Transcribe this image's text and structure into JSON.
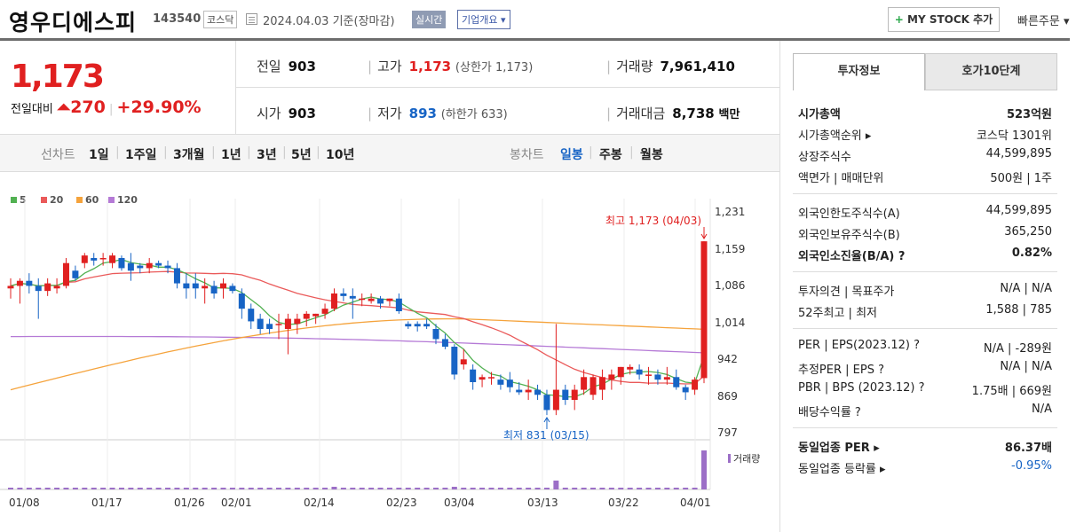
{
  "header": {
    "name": "영우디에스피",
    "code": "143540",
    "market": "코스닥",
    "date": "2024.04.03",
    "basis": "기준(장마감)",
    "realtime": "실시간",
    "company_overview": "기업개요",
    "mystock_label": "MY STOCK 추가",
    "fast_order": "빠른주문"
  },
  "price": {
    "current": "1,173",
    "diff_label": "전일대비",
    "diff_value": "270",
    "diff_pct": "+29.90%"
  },
  "stats": {
    "prev_label": "전일",
    "prev": "903",
    "high_label": "고가",
    "high": "1,173",
    "upper_limit": "(상한가 1,173)",
    "volume_label": "거래량",
    "volume": "7,961,410",
    "open_label": "시가",
    "open": "903",
    "low_label": "저가",
    "low": "893",
    "lower_limit": "(하한가 633)",
    "amount_label": "거래대금",
    "amount": "8,738",
    "amount_unit": "백만"
  },
  "periods": {
    "line_chart": "선차트",
    "items": [
      "1일",
      "1주일",
      "3개월",
      "1년",
      "3년",
      "5년",
      "10년"
    ],
    "candle_chart": "봉차트",
    "candle_items": [
      "일봉",
      "주봉",
      "월봉"
    ]
  },
  "colors": {
    "up": "#e02020",
    "down": "#1764c5",
    "ma5": "#52b152",
    "ma20": "#ea5a5a",
    "ma60": "#f5a33c",
    "ma120": "#b57ad6",
    "volume": "#9c6fc7"
  },
  "chart_data": {
    "type": "candlestick",
    "legend": [
      "5",
      "20",
      "60",
      "120"
    ],
    "y_ticks": [
      "1,231",
      "1,159",
      "1,086",
      "1,014",
      "942",
      "869",
      "797"
    ],
    "ylim": [
      797,
      1231
    ],
    "x_ticks": [
      "01/08",
      "01/17",
      "01/26",
      "02/01",
      "02/14",
      "02/23",
      "03/04",
      "03/13",
      "03/22",
      "04/01"
    ],
    "high_annotation": "최고 1,173 (04/03)",
    "low_annotation": "최저 831 (03/15)",
    "volume_label": "거래량",
    "candles": [
      [
        1080,
        1100,
        1060,
        1085
      ],
      [
        1085,
        1100,
        1050,
        1095
      ],
      [
        1095,
        1110,
        1070,
        1085
      ],
      [
        1085,
        1100,
        1020,
        1075
      ],
      [
        1075,
        1100,
        1065,
        1090
      ],
      [
        1080,
        1100,
        1070,
        1085
      ],
      [
        1085,
        1140,
        1080,
        1130
      ],
      [
        1115,
        1125,
        1095,
        1100
      ],
      [
        1130,
        1150,
        1120,
        1145
      ],
      [
        1140,
        1150,
        1125,
        1135
      ],
      [
        1140,
        1150,
        1125,
        1140
      ],
      [
        1130,
        1150,
        1120,
        1145
      ],
      [
        1140,
        1145,
        1115,
        1120
      ],
      [
        1130,
        1150,
        1095,
        1115
      ],
      [
        1125,
        1130,
        1110,
        1120
      ],
      [
        1120,
        1140,
        1110,
        1130
      ],
      [
        1130,
        1135,
        1120,
        1125
      ],
      [
        1125,
        1135,
        1110,
        1120
      ],
      [
        1120,
        1130,
        1080,
        1090
      ],
      [
        1090,
        1110,
        1060,
        1080
      ],
      [
        1090,
        1110,
        1060,
        1080
      ],
      [
        1080,
        1100,
        1050,
        1085
      ],
      [
        1085,
        1095,
        1060,
        1070
      ],
      [
        1080,
        1100,
        1060,
        1090
      ],
      [
        1085,
        1090,
        1070,
        1075
      ],
      [
        1070,
        1080,
        1020,
        1040
      ],
      [
        1040,
        1050,
        1000,
        1015
      ],
      [
        1020,
        1030,
        990,
        1000
      ],
      [
        1010,
        1020,
        990,
        1000
      ],
      [
        1010,
        1030,
        980,
        1010
      ],
      [
        1000,
        1030,
        950,
        1020
      ],
      [
        1010,
        1030,
        990,
        1020
      ],
      [
        1020,
        1035,
        1005,
        1030
      ],
      [
        1025,
        1030,
        1010,
        1030
      ],
      [
        1030,
        1050,
        1020,
        1040
      ],
      [
        1040,
        1080,
        1035,
        1070
      ],
      [
        1070,
        1080,
        1055,
        1065
      ],
      [
        1065,
        1080,
        1020,
        1060
      ],
      [
        1060,
        1070,
        1045,
        1060
      ],
      [
        1055,
        1070,
        1050,
        1060
      ],
      [
        1060,
        1065,
        1040,
        1050
      ],
      [
        1055,
        1060,
        1045,
        1060
      ],
      [
        1060,
        1070,
        1030,
        1035
      ],
      [
        1010,
        1015,
        1000,
        1005
      ],
      [
        1010,
        1015,
        995,
        1005
      ],
      [
        1010,
        1020,
        1000,
        1005
      ],
      [
        1000,
        1010,
        970,
        980
      ],
      [
        980,
        990,
        960,
        965
      ],
      [
        965,
        970,
        900,
        910
      ],
      [
        930,
        960,
        920,
        940
      ],
      [
        920,
        930,
        880,
        895
      ],
      [
        900,
        910,
        885,
        905
      ],
      [
        905,
        915,
        890,
        905
      ],
      [
        900,
        910,
        880,
        890
      ],
      [
        900,
        915,
        875,
        885
      ],
      [
        880,
        895,
        870,
        875
      ],
      [
        875,
        900,
        860,
        880
      ],
      [
        880,
        890,
        860,
        870
      ],
      [
        870,
        880,
        830,
        840
      ],
      [
        840,
        1010,
        830,
        880
      ],
      [
        880,
        890,
        850,
        860
      ],
      [
        860,
        890,
        840,
        880
      ],
      [
        880,
        920,
        870,
        905
      ],
      [
        870,
        910,
        860,
        905
      ],
      [
        880,
        920,
        860,
        905
      ],
      [
        900,
        920,
        880,
        910
      ],
      [
        905,
        925,
        890,
        925
      ],
      [
        920,
        930,
        910,
        925
      ],
      [
        920,
        930,
        900,
        910
      ],
      [
        910,
        925,
        890,
        910
      ],
      [
        910,
        920,
        890,
        900
      ],
      [
        900,
        925,
        890,
        905
      ],
      [
        905,
        920,
        880,
        885
      ],
      [
        885,
        890,
        860,
        875
      ],
      [
        880,
        905,
        870,
        900
      ],
      [
        903,
        1173,
        893,
        1173
      ]
    ]
  }
}
